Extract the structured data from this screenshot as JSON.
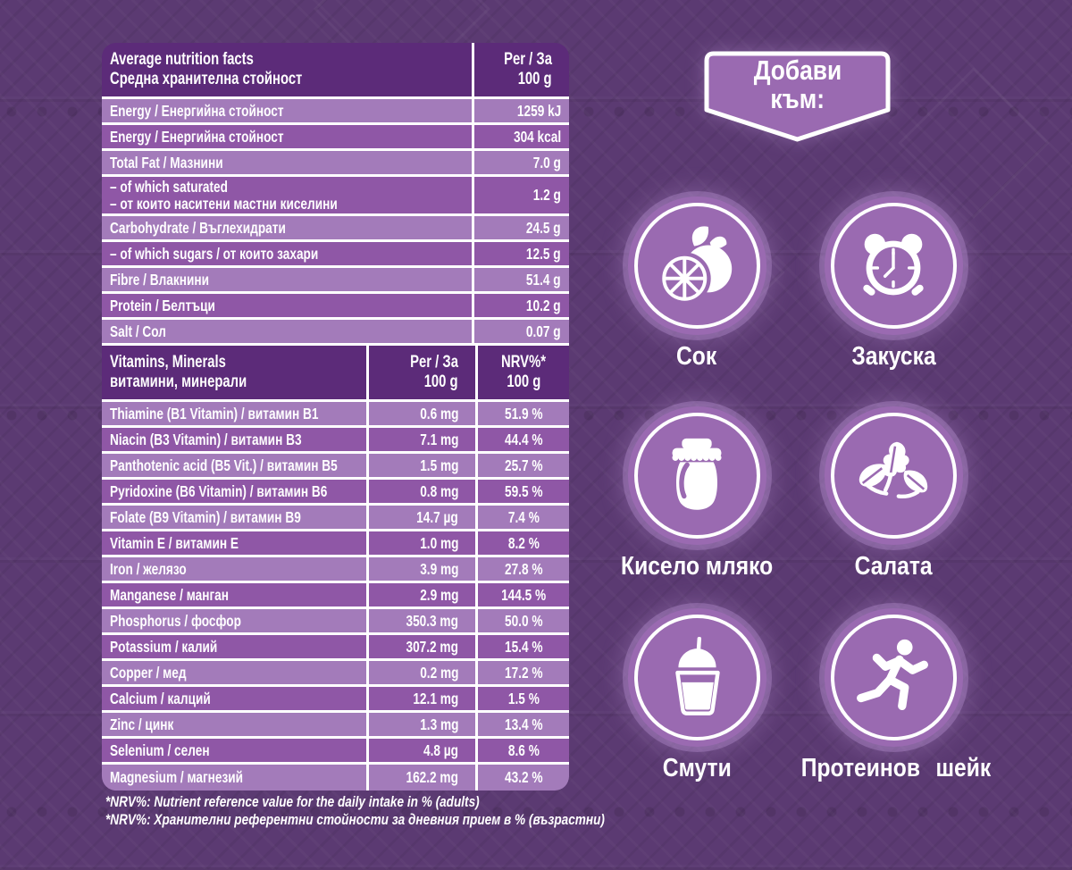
{
  "table": {
    "header": {
      "title_en": "Average nutrition facts",
      "title_bg": "Средна хранителна стойност",
      "col_per": "Per / За",
      "col_per_unit": "100 g"
    },
    "rows": [
      {
        "label": "Energy / Енергийна стойност",
        "value": "1259 kJ"
      },
      {
        "label": "Energy / Енергийна стойност",
        "value": "304 kcal"
      },
      {
        "label": "Total Fat / Мазнини",
        "value": "7.0 g"
      },
      {
        "label_lines": [
          "– of which saturated",
          "– от които наситени мастни киселини"
        ],
        "value": "1.2 g"
      },
      {
        "label": "Carbohydrate / Въглехидрати",
        "value": "24.5 g"
      },
      {
        "label": "– of which sugars / от които захари",
        "value": "12.5 g"
      },
      {
        "label": "Fibre / Влакнини",
        "value": "51.4 g"
      },
      {
        "label": "Protein / Белтъци",
        "value": "10.2 g"
      },
      {
        "label": "Salt / Сол",
        "value": "0.07 g"
      }
    ],
    "vitamins_header": {
      "title_en": "Vitamins, Minerals",
      "title_bg": "витамини, минерали",
      "col_per": "Per / За",
      "col_per_unit": "100 g",
      "col_nrv": "NRV%*",
      "col_nrv_unit": "100 g"
    },
    "vitamin_rows": [
      {
        "label": "Thiamine (B1 Vitamin) / витамин B1",
        "per": "0.6 mg",
        "nrv": "51.9 %"
      },
      {
        "label": "Niacin (B3 Vitamin) / витамин B3",
        "per": "7.1 mg",
        "nrv": "44.4 %"
      },
      {
        "label": "Panthotenic acid (B5 Vit.) / витамин B5",
        "per": "1.5 mg",
        "nrv": "25.7 %"
      },
      {
        "label": "Pyridoxine (B6 Vitamin) / витамин B6",
        "per": "0.8 mg",
        "nrv": "59.5 %"
      },
      {
        "label": "Folate (B9 Vitamin) / витамин B9",
        "per": "14.7 µg",
        "nrv": "7.4 %"
      },
      {
        "label": "Vitamin E / витамин E",
        "per": "1.0 mg",
        "nrv": "8.2 %"
      },
      {
        "label": "Iron / желязо",
        "per": "3.9 mg",
        "nrv": "27.8 %"
      },
      {
        "label": "Manganese / манган",
        "per": "2.9 mg",
        "nrv": "144.5 %"
      },
      {
        "label": "Phosphorus / фосфор",
        "per": "350.3 mg",
        "nrv": "50.0 %"
      },
      {
        "label": "Potassium / калий",
        "per": "307.2 mg",
        "nrv": "15.4 %"
      },
      {
        "label": "Copper / мед",
        "per": "0.2 mg",
        "nrv": "17.2 %"
      },
      {
        "label": "Calcium / калций",
        "per": "12.1 mg",
        "nrv": "1.5 %"
      },
      {
        "label": "Zinc / цинк",
        "per": "1.3 mg",
        "nrv": "13.4 %"
      },
      {
        "label": "Selenium / селен",
        "per": "4.8 µg",
        "nrv": "8.6 %"
      },
      {
        "label": "Magnesium / магнезий",
        "per": "162.2 mg",
        "nrv": "43.2 %"
      }
    ],
    "footnotes": [
      "*NRV%: Nutrient reference value for the daily intake in % (adults)",
      "*NRV%: Хранителни референтни стойности за дневния прием в % (възрастни)"
    ]
  },
  "add_to": {
    "badge_line1": "Добави",
    "badge_line2": "към:",
    "items": [
      {
        "name": "juice",
        "label_lines": [
          "Сок"
        ],
        "icon": "orange-juice-icon"
      },
      {
        "name": "breakfast",
        "label_lines": [
          "Закуска"
        ],
        "icon": "alarm-clock-icon"
      },
      {
        "name": "yogurt",
        "label_lines": [
          "Кисело мляко"
        ],
        "icon": "yogurt-jar-icon"
      },
      {
        "name": "salad",
        "label_lines": [
          "Салата"
        ],
        "icon": "salad-leaves-icon"
      },
      {
        "name": "smoothie",
        "label_lines": [
          "Смути"
        ],
        "icon": "smoothie-cup-icon"
      },
      {
        "name": "protein-shake",
        "label_lines": [
          "Протеинов",
          "шейк"
        ],
        "icon": "runner-icon"
      }
    ]
  },
  "colors": {
    "background": "#5b3a72",
    "table_header": "#5c2b79",
    "row_light": "#a37bba",
    "row_dark": "#8f57a6",
    "accent_circle": "#9a6ab1",
    "text": "#ffffff"
  }
}
